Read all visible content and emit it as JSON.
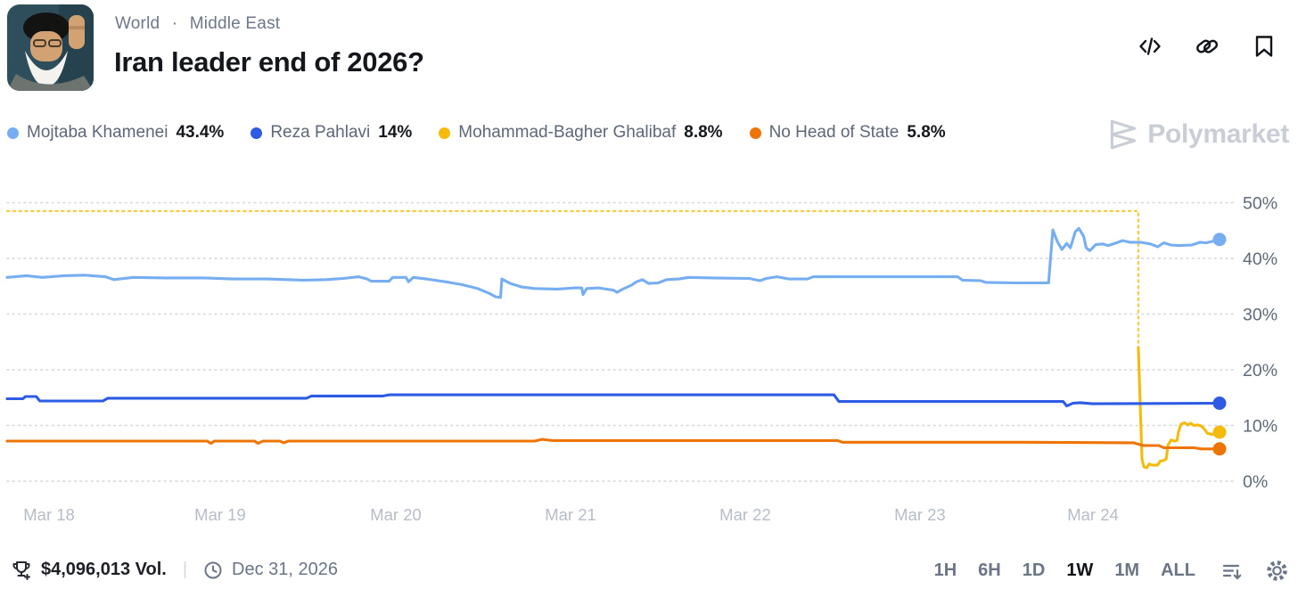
{
  "header": {
    "breadcrumb_world": "World",
    "breadcrumb_sep": "·",
    "breadcrumb_region": "Middle East",
    "title": "Iran leader end of 2026?",
    "action_icons": [
      "embed-code",
      "copy-link",
      "bookmark"
    ]
  },
  "legend": {
    "items": [
      {
        "name": "Mojtaba Khamenei",
        "value": "43.4%",
        "color": "#76aef1"
      },
      {
        "name": "Reza Pahlavi",
        "value": "14%",
        "color": "#2d5be3"
      },
      {
        "name": "Mohammad-Bagher Ghalibaf",
        "value": "8.8%",
        "color": "#f5bb0c"
      },
      {
        "name": "No Head of State",
        "value": "5.8%",
        "color": "#ec7505"
      }
    ]
  },
  "watermark": {
    "label": "Polymarket"
  },
  "chart_data": {
    "type": "line",
    "title": "Iran leader end of 2026?",
    "ylim": [
      0,
      50
    ],
    "grid": "dotted-horizontal",
    "legend_position": "top-left",
    "y_ticks": [
      {
        "v": 0,
        "label": "0%"
      },
      {
        "v": 10,
        "label": "10%"
      },
      {
        "v": 20,
        "label": "20%"
      },
      {
        "v": 30,
        "label": "30%"
      },
      {
        "v": 40,
        "label": "40%"
      },
      {
        "v": 50,
        "label": "50%"
      }
    ],
    "x_ticks": [
      {
        "t": 0.0346,
        "label": "Mar 18"
      },
      {
        "t": 0.1757,
        "label": "Mar 19"
      },
      {
        "t": 0.3206,
        "label": "Mar 20"
      },
      {
        "t": 0.4647,
        "label": "Mar 21"
      },
      {
        "t": 0.6088,
        "label": "Mar 22"
      },
      {
        "t": 0.7529,
        "label": "Mar 23"
      },
      {
        "t": 0.8956,
        "label": "Mar 24"
      }
    ],
    "series": [
      {
        "name": "Mohammad-Bagher Ghalibaf",
        "color": "#f5bb0c",
        "style": "dashed",
        "end_dot": false,
        "points": [
          [
            0,
            48.5
          ],
          [
            0.933,
            48.5
          ],
          [
            0.933,
            24.0
          ]
        ]
      },
      {
        "name": "Mohammad-Bagher Ghalibaf",
        "color": "#f5bb0c",
        "style": "solid",
        "end_dot": true,
        "end_value": 8.8,
        "points": [
          [
            0.933,
            24.0
          ],
          [
            0.936,
            4.0
          ],
          [
            0.9375,
            2.6
          ],
          [
            0.94,
            2.4
          ],
          [
            0.942,
            3.1
          ],
          [
            0.944,
            2.9
          ],
          [
            0.949,
            2.9
          ],
          [
            0.951,
            3.6
          ],
          [
            0.954,
            3.7
          ],
          [
            0.956,
            4.0
          ],
          [
            0.9575,
            6.5
          ],
          [
            0.96,
            7.4
          ],
          [
            0.963,
            7.2
          ],
          [
            0.965,
            7.3
          ],
          [
            0.966,
            8.8
          ],
          [
            0.968,
            10.2
          ],
          [
            0.971,
            10.5
          ],
          [
            0.974,
            10.1
          ],
          [
            0.976,
            10.4
          ],
          [
            0.979,
            10.0
          ],
          [
            0.982,
            10.1
          ],
          [
            0.985,
            9.9
          ],
          [
            0.988,
            9.2
          ],
          [
            0.99,
            8.6
          ],
          [
            0.994,
            8.4
          ],
          [
            0.997,
            8.6
          ],
          [
            1,
            8.8
          ]
        ]
      },
      {
        "name": "No Head of State",
        "color": "#ec7505",
        "style": "solid",
        "end_dot": true,
        "end_value": 5.8,
        "points": [
          [
            0,
            7.2
          ],
          [
            0.165,
            7.2
          ],
          [
            0.168,
            6.8
          ],
          [
            0.171,
            7.2
          ],
          [
            0.204,
            7.2
          ],
          [
            0.207,
            6.8
          ],
          [
            0.211,
            7.2
          ],
          [
            0.225,
            7.2
          ],
          [
            0.228,
            6.9
          ],
          [
            0.232,
            7.2
          ],
          [
            0.435,
            7.2
          ],
          [
            0.441,
            7.5
          ],
          [
            0.45,
            7.3
          ],
          [
            0.685,
            7.3
          ],
          [
            0.689,
            7.0
          ],
          [
            0.84,
            7.0
          ],
          [
            0.929,
            6.9
          ],
          [
            0.937,
            6.4
          ],
          [
            0.95,
            6.4
          ],
          [
            0.954,
            6.0
          ],
          [
            0.979,
            6.0
          ],
          [
            0.985,
            5.8
          ],
          [
            1,
            5.8
          ]
        ]
      },
      {
        "name": "Reza Pahlavi",
        "color": "#2d5be3",
        "style": "solid",
        "end_dot": true,
        "end_value": 14.0,
        "points": [
          [
            0,
            14.8
          ],
          [
            0.013,
            14.8
          ],
          [
            0.015,
            15.2
          ],
          [
            0.024,
            15.2
          ],
          [
            0.027,
            14.4
          ],
          [
            0.079,
            14.4
          ],
          [
            0.083,
            14.9
          ],
          [
            0.247,
            14.9
          ],
          [
            0.251,
            15.3
          ],
          [
            0.31,
            15.3
          ],
          [
            0.315,
            15.5
          ],
          [
            0.682,
            15.5
          ],
          [
            0.686,
            14.3
          ],
          [
            0.84,
            14.3
          ],
          [
            0.871,
            14.3
          ],
          [
            0.874,
            13.5
          ],
          [
            0.879,
            14.0
          ],
          [
            0.885,
            14.1
          ],
          [
            0.895,
            13.9
          ],
          [
            1,
            14.0
          ]
        ]
      },
      {
        "name": "Mojtaba Khamenei",
        "color": "#76aef1",
        "style": "solid",
        "end_dot": true,
        "end_value": 43.4,
        "points": [
          [
            0,
            36.6
          ],
          [
            0.016,
            36.9
          ],
          [
            0.029,
            36.6
          ],
          [
            0.047,
            36.9
          ],
          [
            0.064,
            37.0
          ],
          [
            0.081,
            36.7
          ],
          [
            0.088,
            36.2
          ],
          [
            0.104,
            36.6
          ],
          [
            0.13,
            36.5
          ],
          [
            0.163,
            36.5
          ],
          [
            0.187,
            36.3
          ],
          [
            0.215,
            36.3
          ],
          [
            0.244,
            36.1
          ],
          [
            0.263,
            36.2
          ],
          [
            0.277,
            36.4
          ],
          [
            0.29,
            36.7
          ],
          [
            0.297,
            36.3
          ],
          [
            0.3,
            35.9
          ],
          [
            0.315,
            35.9
          ],
          [
            0.318,
            36.6
          ],
          [
            0.329,
            36.6
          ],
          [
            0.331,
            35.8
          ],
          [
            0.335,
            36.6
          ],
          [
            0.346,
            36.3
          ],
          [
            0.362,
            35.8
          ],
          [
            0.375,
            35.3
          ],
          [
            0.388,
            34.6
          ],
          [
            0.397,
            33.8
          ],
          [
            0.403,
            33.1
          ],
          [
            0.407,
            33.0
          ],
          [
            0.408,
            36.3
          ],
          [
            0.415,
            35.5
          ],
          [
            0.424,
            34.9
          ],
          [
            0.435,
            34.6
          ],
          [
            0.454,
            34.5
          ],
          [
            0.468,
            34.7
          ],
          [
            0.474,
            34.7
          ],
          [
            0.475,
            33.5
          ],
          [
            0.478,
            34.6
          ],
          [
            0.488,
            34.7
          ],
          [
            0.5,
            34.3
          ],
          [
            0.503,
            33.9
          ],
          [
            0.507,
            34.4
          ],
          [
            0.515,
            35.2
          ],
          [
            0.519,
            35.8
          ],
          [
            0.524,
            36.2
          ],
          [
            0.529,
            35.5
          ],
          [
            0.537,
            35.6
          ],
          [
            0.544,
            36.2
          ],
          [
            0.554,
            36.3
          ],
          [
            0.562,
            36.6
          ],
          [
            0.582,
            36.5
          ],
          [
            0.612,
            36.4
          ],
          [
            0.621,
            36.0
          ],
          [
            0.626,
            36.4
          ],
          [
            0.635,
            36.7
          ],
          [
            0.645,
            36.3
          ],
          [
            0.66,
            36.3
          ],
          [
            0.665,
            36.7
          ],
          [
            0.729,
            36.7
          ],
          [
            0.784,
            36.7
          ],
          [
            0.788,
            36.1
          ],
          [
            0.803,
            36.0
          ],
          [
            0.807,
            35.7
          ],
          [
            0.832,
            35.6
          ],
          [
            0.859,
            35.6
          ],
          [
            0.8625,
            45.1
          ],
          [
            0.866,
            43.1
          ],
          [
            0.87,
            41.6
          ],
          [
            0.874,
            42.7
          ],
          [
            0.877,
            41.9
          ],
          [
            0.881,
            44.8
          ],
          [
            0.884,
            45.4
          ],
          [
            0.888,
            43.9
          ],
          [
            0.89,
            41.9
          ],
          [
            0.893,
            41.4
          ],
          [
            0.898,
            42.5
          ],
          [
            0.904,
            42.6
          ],
          [
            0.908,
            42.3
          ],
          [
            0.915,
            42.8
          ],
          [
            0.92,
            43.2
          ],
          [
            0.926,
            42.9
          ],
          [
            0.935,
            42.9
          ],
          [
            0.943,
            42.6
          ],
          [
            0.949,
            42.1
          ],
          [
            0.954,
            42.8
          ],
          [
            0.96,
            42.4
          ],
          [
            0.966,
            42.3
          ],
          [
            0.977,
            42.4
          ],
          [
            0.984,
            42.9
          ],
          [
            0.989,
            42.8
          ],
          [
            0.995,
            43.1
          ],
          [
            1,
            43.4
          ]
        ]
      }
    ]
  },
  "footer": {
    "volume": "$4,096,013 Vol.",
    "divider": "|",
    "end_date": "Dec 31, 2026",
    "ranges": [
      "1H",
      "6H",
      "1D",
      "1W",
      "1M",
      "ALL"
    ],
    "active_range": "1W"
  }
}
